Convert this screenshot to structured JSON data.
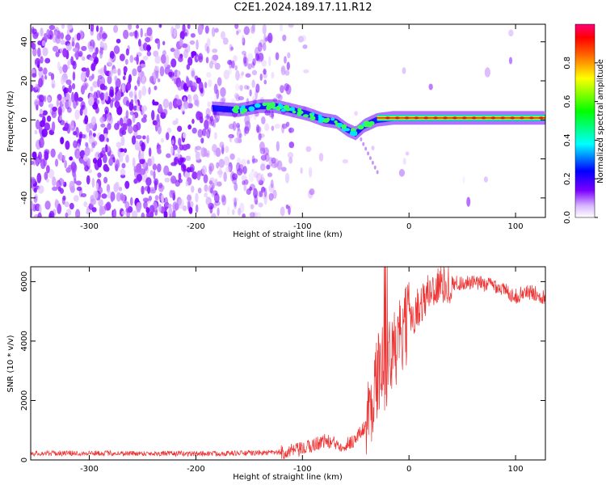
{
  "title": "C2E1.2024.189.17.11.R12",
  "chart_data": [
    {
      "type": "heatmap",
      "xlabel": "Height of straight line (km)",
      "ylabel": "Frequency (Hz)",
      "xlim": [
        -355,
        128
      ],
      "ylim": [
        -50,
        49
      ],
      "xticks": [
        -300,
        -200,
        -100,
        0,
        100
      ],
      "xtick_labels": [
        "-300",
        "-200",
        "-100",
        "0",
        "100"
      ],
      "yticks": [
        -40,
        -20,
        0,
        20,
        40
      ],
      "ytick_labels": [
        "-40",
        "-20",
        "0",
        "20",
        "40"
      ],
      "colorbar": {
        "label": "Normalized spectral amplitude",
        "range": [
          0,
          1
        ],
        "ticks": [
          0.0,
          0.2,
          0.4,
          0.6,
          0.8
        ],
        "tick_labels": [
          "0.0",
          "0.2",
          "0.4",
          "0.6",
          "0.8"
        ]
      },
      "ridge": {
        "x": [
          -185,
          -160,
          -140,
          -125,
          -110,
          -95,
          -80,
          -68,
          -58,
          -50,
          -42,
          -30,
          -15,
          0,
          50,
          100,
          128
        ],
        "y": [
          6,
          5,
          7,
          7,
          5,
          3,
          0,
          -1,
          -5,
          -7,
          -3,
          0,
          1,
          1,
          1,
          1,
          1
        ]
      },
      "grid": false
    },
    {
      "type": "line",
      "xlabel": "Height of straight line (km)",
      "ylabel": "SNR (10 * v/v)",
      "xlim": [
        -355,
        128
      ],
      "ylim": [
        0,
        6500
      ],
      "xticks": [
        -300,
        -200,
        -100,
        0,
        100
      ],
      "xtick_labels": [
        "-300",
        "-200",
        "-100",
        "0",
        "100"
      ],
      "yticks": [
        0,
        2000,
        4000,
        6000
      ],
      "ytick_labels": [
        "0",
        "2000",
        "4000",
        "6000"
      ],
      "color": "#ee3333",
      "series": [
        {
          "x": [
            -355,
            -300,
            -250,
            -200,
            -150,
            -120,
            -100,
            -90,
            -80,
            -70,
            -60,
            -50,
            -40,
            -35,
            -30,
            -25,
            -22,
            -20,
            -15,
            -10,
            -5,
            0,
            10,
            20,
            30,
            40,
            60,
            80,
            95,
            100,
            110,
            120,
            128
          ],
          "y": [
            220,
            230,
            220,
            210,
            230,
            250,
            350,
            500,
            650,
            550,
            500,
            700,
            1200,
            2000,
            2800,
            3200,
            3000,
            3300,
            3600,
            3900,
            4300,
            4700,
            5200,
            5700,
            5900,
            5950,
            5950,
            5900,
            5600,
            5500,
            5650,
            5600,
            5450
          ]
        }
      ]
    }
  ]
}
